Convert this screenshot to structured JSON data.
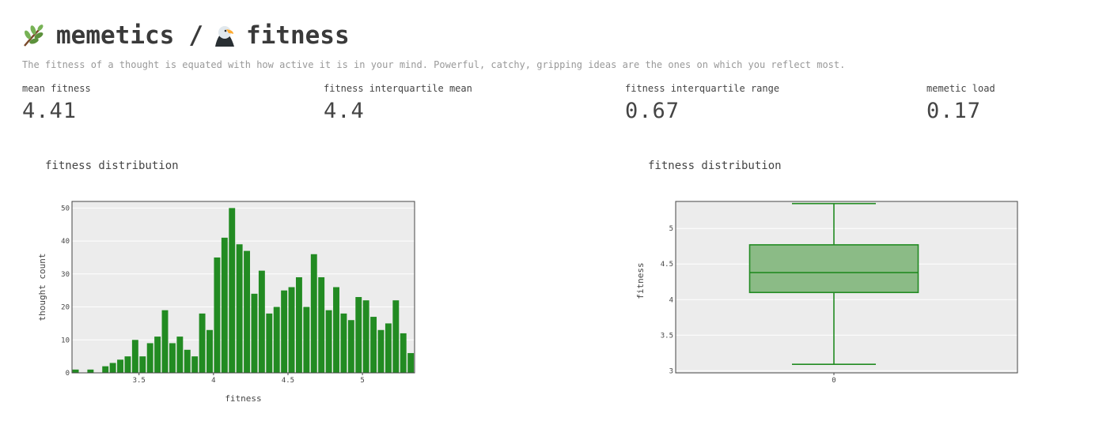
{
  "header": {
    "title_left": "memetics",
    "title_sep": "/",
    "title_right": "fitness",
    "subtitle": "The fitness of a thought is equated with how active it is in your mind. Powerful, catchy, gripping ideas are the ones on which you reflect most.",
    "icons": [
      "herb-icon",
      "eagle-icon"
    ]
  },
  "metrics": [
    {
      "label": "mean fitness",
      "value": "4.41"
    },
    {
      "label": "fitness interquartile mean",
      "value": "4.4"
    },
    {
      "label": "fitness interquartile range",
      "value": "0.67"
    },
    {
      "label": "memetic load",
      "value": "0.17"
    }
  ],
  "colors": {
    "bar": "#228b22",
    "plot_bg": "#ececec",
    "box_fill": "#8bbb86",
    "grid": "#ffffff"
  },
  "chart_data": [
    {
      "type": "bar",
      "title": "fitness distribution",
      "xlabel": "fitness",
      "ylabel": "thought count",
      "xlim": [
        3.05,
        5.35
      ],
      "ylim": [
        0,
        52
      ],
      "xticks": [
        "3.5",
        "4",
        "4.5",
        "5"
      ],
      "xtick_values": [
        3.5,
        4,
        4.5,
        5
      ],
      "yticks": [
        "0",
        "10",
        "20",
        "30",
        "40",
        "50"
      ],
      "ytick_values": [
        0,
        10,
        20,
        30,
        40,
        50
      ],
      "bin_width": 0.05,
      "x": [
        3.075,
        3.125,
        3.175,
        3.225,
        3.275,
        3.325,
        3.375,
        3.425,
        3.475,
        3.525,
        3.575,
        3.625,
        3.675,
        3.725,
        3.775,
        3.825,
        3.875,
        3.925,
        3.975,
        4.025,
        4.075,
        4.125,
        4.175,
        4.225,
        4.275,
        4.325,
        4.375,
        4.425,
        4.475,
        4.525,
        4.575,
        4.625,
        4.675,
        4.725,
        4.775,
        4.825,
        4.875,
        4.925,
        4.975,
        5.025,
        5.075,
        5.125,
        5.175,
        5.225,
        5.275,
        5.325
      ],
      "values": [
        1,
        0,
        1,
        0,
        2,
        3,
        4,
        5,
        10,
        5,
        9,
        11,
        19,
        9,
        11,
        7,
        5,
        18,
        13,
        35,
        41,
        50,
        39,
        37,
        24,
        31,
        18,
        20,
        25,
        26,
        29,
        20,
        36,
        29,
        19,
        26,
        18,
        16,
        23,
        22,
        17,
        13,
        15,
        22,
        12,
        6
      ],
      "grid": true
    },
    {
      "type": "box",
      "title": "fitness distribution",
      "xlabel": "",
      "ylabel": "fitness",
      "ylim": [
        2.97,
        5.38
      ],
      "yticks": [
        "3",
        "3.5",
        "4",
        "4.5",
        "5"
      ],
      "ytick_values": [
        3,
        3.5,
        4,
        4.5,
        5
      ],
      "categories": [
        "0"
      ],
      "box": {
        "min": 3.09,
        "q1": 4.1,
        "median": 4.38,
        "q3": 4.77,
        "max": 5.35
      },
      "grid": true
    }
  ]
}
